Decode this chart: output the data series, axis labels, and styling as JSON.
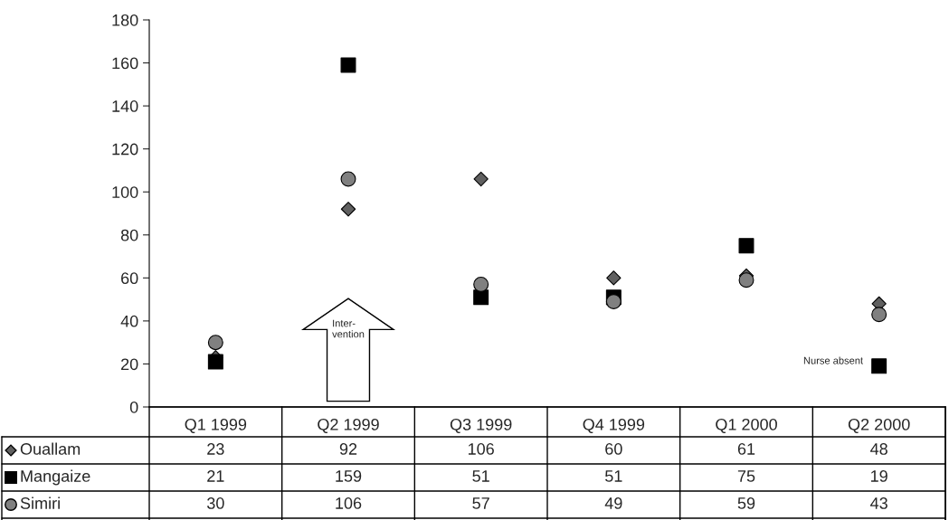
{
  "chart_data": {
    "type": "scatter",
    "categories": [
      "Q1 1999",
      "Q2 1999",
      "Q3 1999",
      "Q4 1999",
      "Q1 2000",
      "Q2 2000"
    ],
    "series": [
      {
        "name": "Ouallam",
        "color": "#606060",
        "marker": "diamond",
        "values": [
          23,
          92,
          106,
          60,
          61,
          48
        ]
      },
      {
        "name": "Mangaize",
        "color": "#000000",
        "marker": "square",
        "values": [
          21,
          159,
          51,
          51,
          75,
          19
        ]
      },
      {
        "name": "Simiri",
        "color": "#808080",
        "marker": "circle",
        "values": [
          30,
          106,
          57,
          49,
          59,
          43
        ]
      }
    ],
    "ylim": [
      0,
      180
    ],
    "yticks": [
      0,
      20,
      40,
      60,
      80,
      100,
      120,
      140,
      160,
      180
    ],
    "grid": false,
    "legend": "bottom",
    "data_labels": true,
    "annotations": [
      "Inter-\nvention",
      {
        "text": "Nurse absent",
        "x": "Q2 2000",
        "y": 19
      }
    ]
  }
}
